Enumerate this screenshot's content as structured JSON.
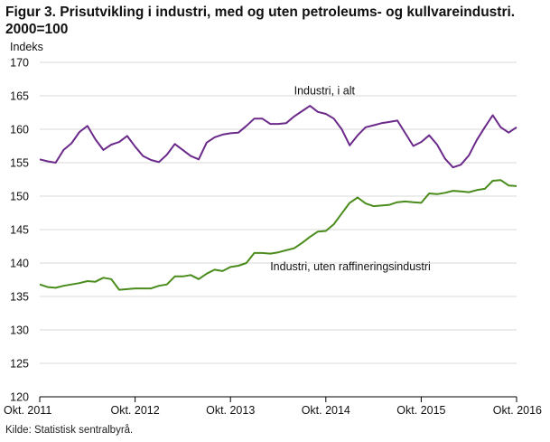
{
  "title": "Figur 3. Prisutvikling i industri, med og uten petroleums- og kullvareindustri. 2000=100",
  "source": "Kilde: Statistisk sentralbyrå.",
  "chart_data": {
    "type": "line",
    "ylabel": "Indeks",
    "ylim": [
      120,
      170
    ],
    "yticks": [
      120,
      125,
      130,
      135,
      140,
      145,
      150,
      155,
      160,
      165,
      170
    ],
    "xticks": [
      "Okt. 2011",
      "Okt. 2012",
      "Okt. 2013",
      "Okt. 2014",
      "Okt. 2015",
      "Okt. 2016"
    ],
    "grid": "horizontal",
    "series": [
      {
        "name": "Industri, i alt",
        "color": "#6b2a8a",
        "values": [
          155.5,
          155.2,
          155.0,
          156.9,
          157.9,
          159.6,
          160.5,
          158.5,
          156.9,
          157.7,
          158.1,
          159.0,
          157.4,
          156.0,
          155.4,
          155.1,
          156.2,
          157.8,
          156.9,
          156.0,
          155.5,
          158.0,
          158.8,
          159.2,
          159.4,
          159.5,
          160.5,
          161.6,
          161.6,
          160.8,
          160.8,
          160.9,
          161.9,
          162.7,
          163.5,
          162.6,
          162.3,
          161.6,
          160.0,
          157.6,
          159.1,
          160.3,
          160.6,
          160.9,
          161.1,
          161.3,
          159.4,
          157.5,
          158.1,
          159.1,
          157.7,
          155.6,
          154.3,
          154.7,
          156.1,
          158.4,
          160.3,
          162.1,
          160.3,
          159.5,
          160.3
        ]
      },
      {
        "name": "Industri, uten raffineringsindustri",
        "color": "#4a8c1c",
        "values": [
          136.8,
          136.4,
          136.3,
          136.6,
          136.8,
          137.0,
          137.3,
          137.2,
          137.8,
          137.6,
          136.0,
          136.1,
          136.2,
          136.2,
          136.2,
          136.6,
          136.8,
          138.0,
          138.0,
          138.2,
          137.6,
          138.4,
          139.0,
          138.8,
          139.4,
          139.6,
          140.0,
          141.5,
          141.5,
          141.4,
          141.6,
          141.9,
          142.2,
          143.0,
          143.9,
          144.7,
          144.8,
          145.8,
          147.4,
          149.0,
          149.8,
          148.9,
          148.5,
          148.6,
          148.7,
          149.1,
          149.2,
          149.1,
          149.0,
          150.4,
          150.3,
          150.5,
          150.8,
          150.7,
          150.6,
          150.9,
          151.1,
          152.3,
          152.4,
          151.6,
          151.5
        ]
      }
    ],
    "annotations": [
      {
        "text": "Industri,  i alt",
        "x": 32,
        "y": 165.2
      },
      {
        "text": "Industri,  uten raffineringsindustri",
        "x": 29,
        "y": 138.9
      }
    ]
  }
}
